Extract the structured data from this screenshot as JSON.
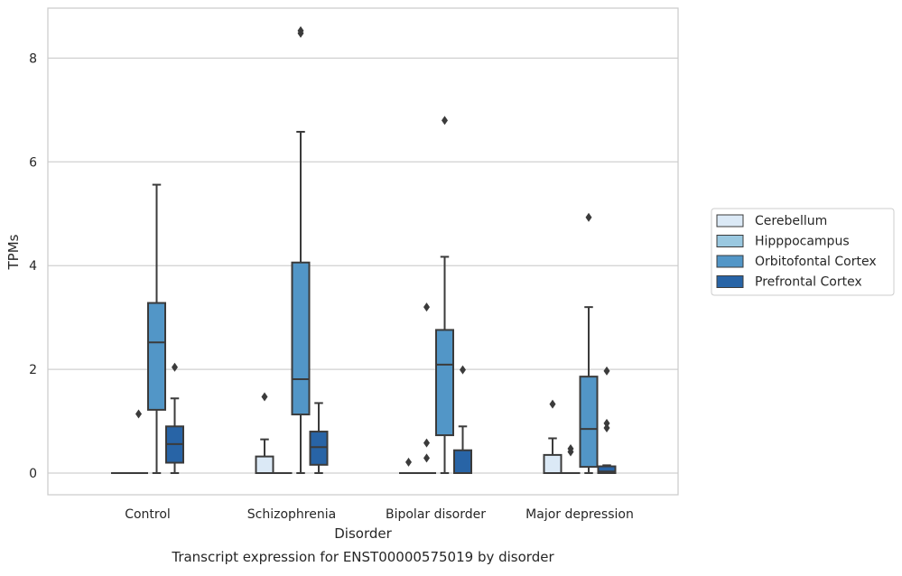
{
  "chart_data": {
    "type": "box",
    "title": "",
    "caption": "Transcript expression for ENST00000575019 by disorder",
    "xlabel": "Disorder",
    "ylabel": "TPMs",
    "ylim": [
      -0.42,
      8.95
    ],
    "yticks": [
      0,
      2,
      4,
      6,
      8
    ],
    "grid": "horizontal",
    "legend_position": "right",
    "categories": [
      "Control",
      "Schizophrenia",
      "Bipolar disorder",
      "Major depression"
    ],
    "series": [
      {
        "name": "Cerebellum",
        "color": "#dbe9f6",
        "boxes": [
          {
            "q1": 0,
            "median": 0,
            "q3": 0,
            "whislo": 0,
            "whishi": 0,
            "fliers": []
          },
          {
            "q1": 0,
            "median": 0,
            "q3": 0.32,
            "whislo": 0,
            "whishi": 0.65,
            "fliers": [
              1.47
            ]
          },
          {
            "q1": 0,
            "median": 0,
            "q3": 0,
            "whislo": 0,
            "whishi": 0,
            "fliers": [
              0.21
            ]
          },
          {
            "q1": 0,
            "median": 0,
            "q3": 0.35,
            "whislo": 0,
            "whishi": 0.67,
            "fliers": [
              1.33
            ]
          }
        ]
      },
      {
        "name": "Hipppocampus",
        "color": "#9ac8e0",
        "boxes": [
          {
            "q1": 0,
            "median": 0,
            "q3": 0,
            "whislo": 0,
            "whishi": 0,
            "fliers": [
              1.14
            ]
          },
          {
            "q1": 0,
            "median": 0,
            "q3": 0,
            "whislo": 0,
            "whishi": 0,
            "fliers": []
          },
          {
            "q1": 0,
            "median": 0,
            "q3": 0,
            "whislo": 0,
            "whishi": 0,
            "fliers": [
              3.2,
              0.29,
              0.58
            ]
          },
          {
            "q1": 0,
            "median": 0,
            "q3": 0,
            "whislo": 0,
            "whishi": 0,
            "fliers": [
              0.41,
              0.47
            ]
          }
        ]
      },
      {
        "name": "Orbitofontal Cortex",
        "color": "#5296c7",
        "boxes": [
          {
            "q1": 1.22,
            "median": 2.52,
            "q3": 3.28,
            "whislo": 0,
            "whishi": 5.56,
            "fliers": []
          },
          {
            "q1": 1.13,
            "median": 1.81,
            "q3": 4.06,
            "whislo": 0,
            "whishi": 6.58,
            "fliers": [
              8.48,
              8.53
            ]
          },
          {
            "q1": 0.73,
            "median": 2.09,
            "q3": 2.76,
            "whislo": 0,
            "whishi": 4.17,
            "fliers": [
              6.8
            ]
          },
          {
            "q1": 0.12,
            "median": 0.85,
            "q3": 1.86,
            "whislo": 0,
            "whishi": 3.2,
            "fliers": [
              4.93
            ]
          }
        ]
      },
      {
        "name": "Prefrontal Cortex",
        "color": "#2864a6",
        "boxes": [
          {
            "q1": 0.2,
            "median": 0.56,
            "q3": 0.9,
            "whislo": 0,
            "whishi": 1.44,
            "fliers": [
              2.04
            ]
          },
          {
            "q1": 0.16,
            "median": 0.5,
            "q3": 0.8,
            "whislo": 0,
            "whishi": 1.35,
            "fliers": []
          },
          {
            "q1": 0,
            "median": 0,
            "q3": 0.44,
            "whislo": 0,
            "whishi": 0.9,
            "fliers": [
              1.99
            ]
          },
          {
            "q1": 0,
            "median": 0.03,
            "q3": 0.13,
            "whislo": 0,
            "whishi": 0.15,
            "fliers": [
              0.87,
              0.96,
              1.97
            ]
          }
        ]
      }
    ]
  }
}
